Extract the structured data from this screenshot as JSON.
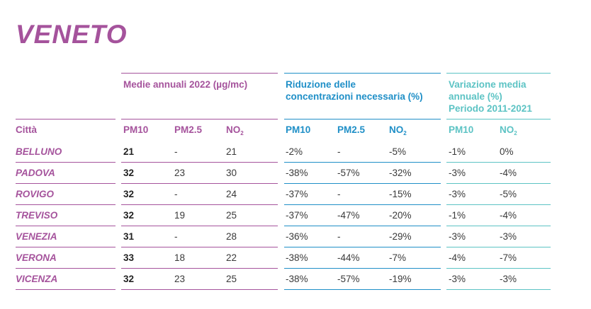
{
  "title": "VENETO",
  "groups": {
    "annual": "Medie annuali 2022 (µg/mc)",
    "reduction": [
      "Riduzione delle",
      "concentrazioni necessaria (%)"
    ],
    "variation": [
      "Variazione media",
      "annuale (%)",
      "Periodo 2011-2021"
    ]
  },
  "columns": {
    "city": "Città",
    "pm10": "PM10",
    "pm25": "PM2.5",
    "no2_base": "NO",
    "no2_sub": "2"
  },
  "rows": [
    {
      "city": "BELLUNO",
      "pm10": "21",
      "pm25": "-",
      "no2": "21",
      "r_pm10": "-2%",
      "r_pm25": "-",
      "r_no2": "-5%",
      "v_pm10": "-1%",
      "v_no2": "0%"
    },
    {
      "city": "PADOVA",
      "pm10": "32",
      "pm25": "23",
      "no2": "30",
      "r_pm10": "-38%",
      "r_pm25": "-57%",
      "r_no2": "-32%",
      "v_pm10": "-3%",
      "v_no2": "-4%"
    },
    {
      "city": "ROVIGO",
      "pm10": "32",
      "pm25": "-",
      "no2": "24",
      "r_pm10": "-37%",
      "r_pm25": "-",
      "r_no2": "-15%",
      "v_pm10": "-3%",
      "v_no2": "-5%"
    },
    {
      "city": "TREVISO",
      "pm10": "32",
      "pm25": "19",
      "no2": "25",
      "r_pm10": "-37%",
      "r_pm25": "-47%",
      "r_no2": "-20%",
      "v_pm10": "-1%",
      "v_no2": "-4%"
    },
    {
      "city": "VENEZIA",
      "pm10": "31",
      "pm25": "-",
      "no2": "28",
      "r_pm10": "-36%",
      "r_pm25": "-",
      "r_no2": "-29%",
      "v_pm10": "-3%",
      "v_no2": "-3%"
    },
    {
      "city": "VERONA",
      "pm10": "33",
      "pm25": "18",
      "no2": "22",
      "r_pm10": "-38%",
      "r_pm25": "-44%",
      "r_no2": "-7%",
      "v_pm10": "-4%",
      "v_no2": "-7%"
    },
    {
      "city": "VICENZA",
      "pm10": "32",
      "pm25": "23",
      "no2": "25",
      "r_pm10": "-38%",
      "r_pm25": "-57%",
      "r_no2": "-19%",
      "v_pm10": "-3%",
      "v_no2": "-3%"
    }
  ],
  "colors": {
    "purple": "#a5539c",
    "blue": "#1f8fc7",
    "teal": "#5cc3c4"
  }
}
